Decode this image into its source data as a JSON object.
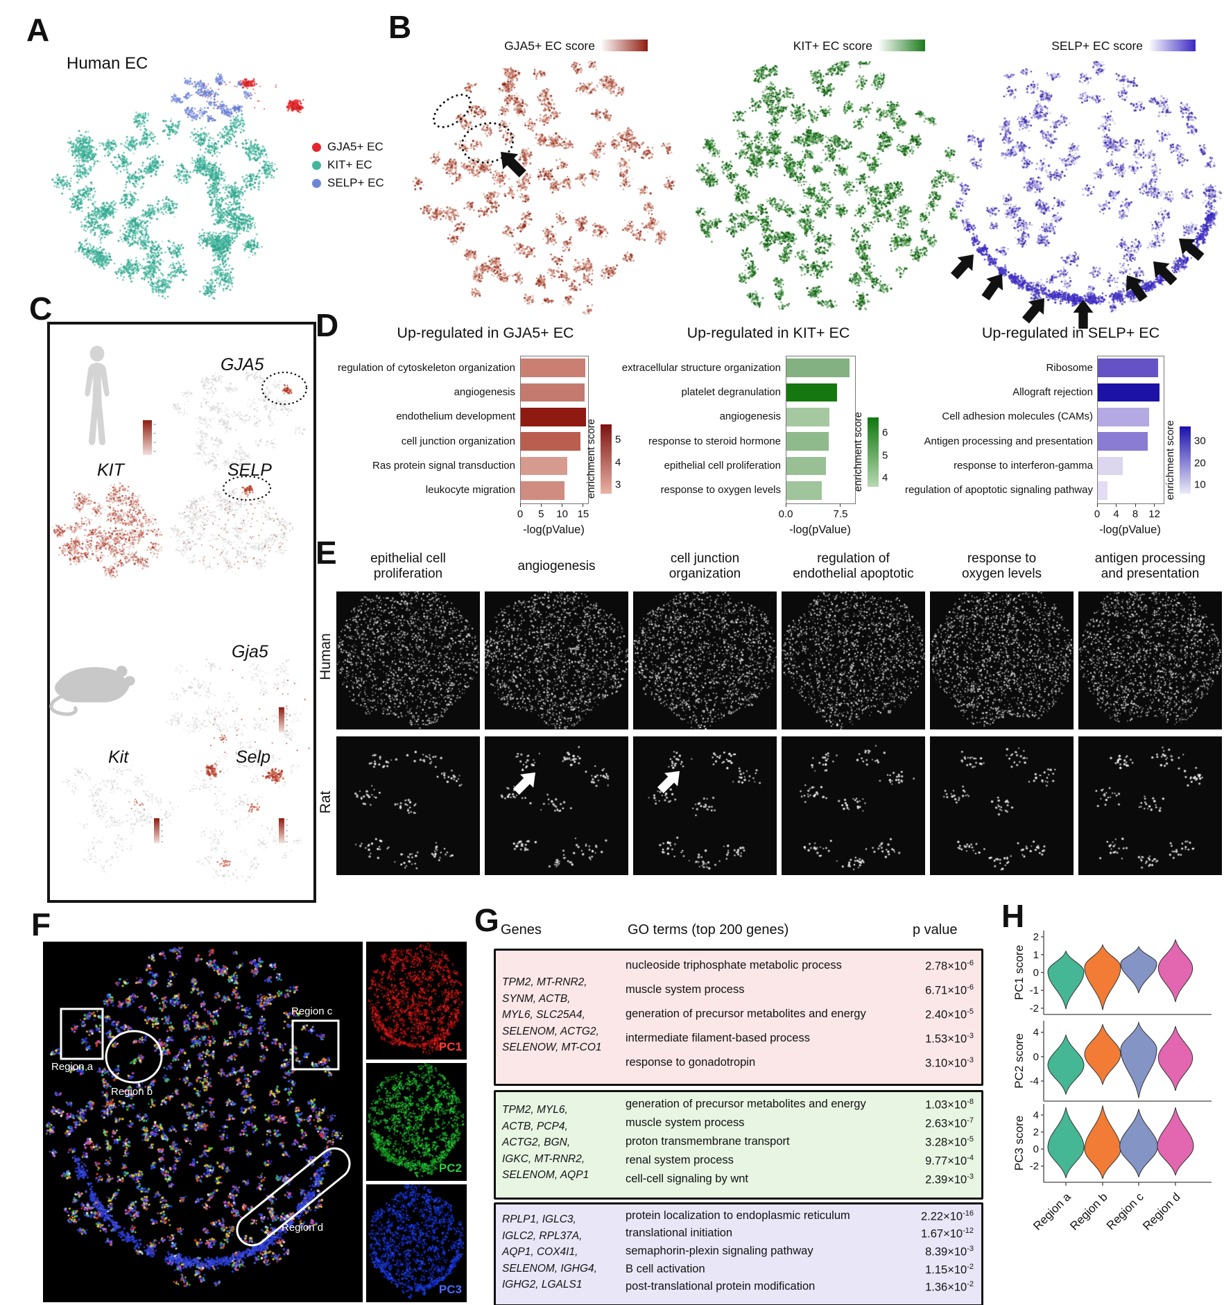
{
  "panels": {
    "A": {
      "label": "A",
      "title": "Human EC",
      "legend": [
        {
          "label": "GJA5+ EC",
          "color": "#e3262a"
        },
        {
          "label": "KIT+ EC",
          "color": "#40b79b"
        },
        {
          "label": "SELP+ EC",
          "color": "#6f86d8"
        }
      ]
    },
    "B": {
      "label": "B",
      "plots": [
        {
          "title": "GJA5+ EC score",
          "colorbar_from": "#ffffff",
          "colorbar_to": "#8f1d10"
        },
        {
          "title": "KIT+ EC score",
          "colorbar_from": "#ffffff",
          "colorbar_to": "#1d7a1d"
        },
        {
          "title": "SELP+ EC score",
          "colorbar_from": "#ffffff",
          "colorbar_to": "#3b28c2"
        }
      ]
    },
    "C": {
      "label": "C",
      "human": {
        "genes": [
          "GJA5",
          "KIT",
          "SELP"
        ]
      },
      "rat": {
        "genes": [
          "Gja5",
          "Kit",
          "Selp"
        ]
      }
    },
    "D": {
      "label": "D"
    },
    "E": {
      "label": "E",
      "columns": [
        "epithelial cell\nproliferation",
        "angiogenesis",
        "cell junction\norganization",
        "regulation of\nendothelial apoptotic",
        "response to\noxygen levels",
        "antigen processing\nand presentation"
      ],
      "rows": [
        "Human",
        "Rat"
      ]
    },
    "F": {
      "label": "F",
      "regions": {
        "a": "Region a",
        "b": "Region b",
        "c": "Region c",
        "d": "Region d"
      },
      "pc": [
        {
          "label": "PC1",
          "color": "#ff3b30"
        },
        {
          "label": "PC2",
          "color": "#2ecc40"
        },
        {
          "label": "PC3",
          "color": "#4a6cf7"
        }
      ]
    },
    "G": {
      "label": "G",
      "headers": {
        "genes": "Genes",
        "go": "GO terms (top 200 genes)",
        "p": "p value"
      },
      "groups": [
        {
          "bg": "#fbe7e8",
          "genes": [
            "TPM2, MT-RNR2,",
            "SYNM, ACTB,",
            "MYL6, SLC25A4,",
            "SELENOM, ACTG2,",
            "SELENOW, MT-CO1"
          ],
          "rows": [
            {
              "term": "nucleoside triphosphate metabolic process",
              "p": "2.78×10",
              "exp": "-6"
            },
            {
              "term": "muscle system process",
              "p": "6.71×10",
              "exp": "-6"
            },
            {
              "term": "generation of precursor metabolites and energy",
              "p": "2.40×10",
              "exp": "-5"
            },
            {
              "term": "intermediate filament-based process",
              "p": "1.53×10",
              "exp": "-3"
            },
            {
              "term": "response to gonadotropin",
              "p": "3.10×10",
              "exp": "-3"
            }
          ]
        },
        {
          "bg": "#e8f5e3",
          "genes": [
            "TPM2, MYL6,",
            "ACTB, PCP4,",
            "ACTG2, BGN,",
            "IGKC, MT-RNR2,",
            "SELENOM, AQP1"
          ],
          "rows": [
            {
              "term": "generation of precursor metabolites and energy",
              "p": "1.03×10",
              "exp": "-8"
            },
            {
              "term": "muscle system process",
              "p": "2.63×10",
              "exp": "-7"
            },
            {
              "term": "proton transmembrane transport",
              "p": "3.28×10",
              "exp": "-5"
            },
            {
              "term": "renal system process",
              "p": "9.77×10",
              "exp": "-4"
            },
            {
              "term": "cell-cell signaling by wnt",
              "p": "2.39×10",
              "exp": "-3"
            }
          ]
        },
        {
          "bg": "#e9e6f7",
          "genes": [
            "RPLP1, IGLC3,",
            "IGLC2, RPL37A,",
            "AQP1, COX4I1,",
            "SELENOM, IGHG4,",
            "IGHG2, LGALS1"
          ],
          "rows": [
            {
              "term": "protein localization to endoplasmic reticulum",
              "p": "2.22×10",
              "exp": "-16"
            },
            {
              "term": "translational initiation",
              "p": "1.67×10",
              "exp": "-12"
            },
            {
              "term": "semaphorin-plexin signaling pathway",
              "p": "8.39×10",
              "exp": "-3"
            },
            {
              "term": "B cell activation",
              "p": "1.15×10",
              "exp": "-2"
            },
            {
              "term": "post-translational protein modification",
              "p": "1.36×10",
              "exp": "-2"
            }
          ]
        }
      ]
    },
    "H": {
      "label": "H"
    }
  },
  "chart_data": [
    {
      "type": "bar",
      "title": "Up-regulated in GJA5+ EC",
      "xlabel": "-log(pValue)",
      "xlim": [
        0,
        16
      ],
      "xticks": [
        0,
        5,
        10,
        15
      ],
      "xtick_labels": [
        "0",
        "5",
        "10",
        "15"
      ],
      "categories": [
        "regulation of cytoskeleton organization",
        "angiogenesis",
        "endothelium development",
        "cell junction organization",
        "Ras protein signal transduction",
        "leukocyte migration"
      ],
      "values": [
        15.3,
        15.2,
        15.5,
        14.2,
        11.0,
        10.4
      ],
      "bar_colors": [
        "#c98073",
        "#c47a6e",
        "#8e1a12",
        "#ba5e4f",
        "#d79a8e",
        "#d08c80"
      ],
      "colorbar": {
        "label": "enrichment score",
        "ticks": [
          5,
          4,
          3
        ],
        "from": "#7c1210",
        "to": "#eab2a6"
      }
    },
    {
      "type": "bar",
      "title": "Up-regulated in KIT+ EC",
      "xlabel": "-log(pValue)",
      "xlim": [
        0,
        9.4
      ],
      "xticks": [
        0,
        7.5
      ],
      "xtick_labels": [
        "0.0",
        "7.5"
      ],
      "categories": [
        "extracellular structure organization",
        "platelet degranulation",
        "angiogenesis",
        "response to steroid hormone",
        "epithelial cell proliferation",
        "response to oxygen levels"
      ],
      "values": [
        8.6,
        6.9,
        5.9,
        5.8,
        5.4,
        4.8
      ],
      "bar_colors": [
        "#84b181",
        "#15770f",
        "#a6c8a0",
        "#8fba8b",
        "#98c094",
        "#a0c49b"
      ],
      "colorbar": {
        "label": "enrichment score",
        "ticks": [
          6,
          5,
          4
        ],
        "from": "#0f770f",
        "to": "#b7d8b1"
      }
    },
    {
      "type": "bar",
      "title": "Up-regulated in SELP+ EC",
      "xlabel": "-log(pValue)",
      "xlim": [
        0,
        13.8
      ],
      "xticks": [
        0,
        4,
        8,
        12
      ],
      "xtick_labels": [
        "0",
        "4",
        "8",
        "12"
      ],
      "categories": [
        "Ribosome",
        "Allograft rejection",
        "Cell adhesion molecules (CAMs)",
        "Antigen processing and presentation",
        "response to interferon-gamma",
        "regulation of apoptotic signaling pathway"
      ],
      "values": [
        12.6,
        12.9,
        10.8,
        10.5,
        5.3,
        2.1
      ],
      "bar_colors": [
        "#6553c6",
        "#1c12a6",
        "#b4a9e2",
        "#8a7bd3",
        "#dcd6ef",
        "#e2ddf3"
      ],
      "colorbar": {
        "label": "enrichment score",
        "ticks": [
          30,
          20,
          10
        ],
        "from": "#1a10ab",
        "to": "#eceaf8"
      }
    },
    {
      "type": "violin",
      "categories": [
        "Region a",
        "Region b",
        "Region c",
        "Region d"
      ],
      "colors": [
        "#45b795",
        "#f27c35",
        "#8494c5",
        "#e366b1"
      ],
      "subplots": [
        {
          "ylabel": "PC1 score",
          "ylim": [
            -2.35,
            2.35
          ],
          "yticks": [
            2,
            1,
            0,
            -1,
            -2
          ],
          "violins": [
            {
              "center": 0.05,
              "top": 1.2,
              "bottom": -2.05,
              "width": 1.0
            },
            {
              "center": 0.3,
              "top": 1.55,
              "bottom": -2.1,
              "width": 1.0
            },
            {
              "center": 0.5,
              "top": 1.45,
              "bottom": -1.15,
              "width": 1.0
            },
            {
              "center": 0.25,
              "top": 1.85,
              "bottom": -1.65,
              "width": 0.95
            }
          ]
        },
        {
          "ylabel": "PC2 score",
          "ylim": [
            -7.3,
            5.9
          ],
          "yticks": [
            4,
            0,
            -4
          ],
          "violins": [
            {
              "center": -1.4,
              "top": 3.6,
              "bottom": -6.2,
              "width": 1.0
            },
            {
              "center": 0.4,
              "top": 5.3,
              "bottom": -4.6,
              "width": 1.0
            },
            {
              "center": 1.2,
              "top": 5.6,
              "bottom": -6.8,
              "width": 1.0
            },
            {
              "center": -0.2,
              "top": 5.0,
              "bottom": -5.6,
              "width": 0.95
            }
          ]
        },
        {
          "ylabel": "PC3 score",
          "ylim": [
            -3.9,
            5.3
          ],
          "yticks": [
            4,
            2,
            0,
            -2
          ],
          "violins": [
            {
              "center": 0.2,
              "top": 4.9,
              "bottom": -3.4,
              "width": 1.0
            },
            {
              "center": 0.0,
              "top": 5.1,
              "bottom": -3.5,
              "width": 1.0
            },
            {
              "center": 0.3,
              "top": 4.7,
              "bottom": -3.3,
              "width": 1.05
            },
            {
              "center": 0.3,
              "top": 4.9,
              "bottom": -3.1,
              "width": 1.0
            }
          ]
        }
      ]
    }
  ]
}
